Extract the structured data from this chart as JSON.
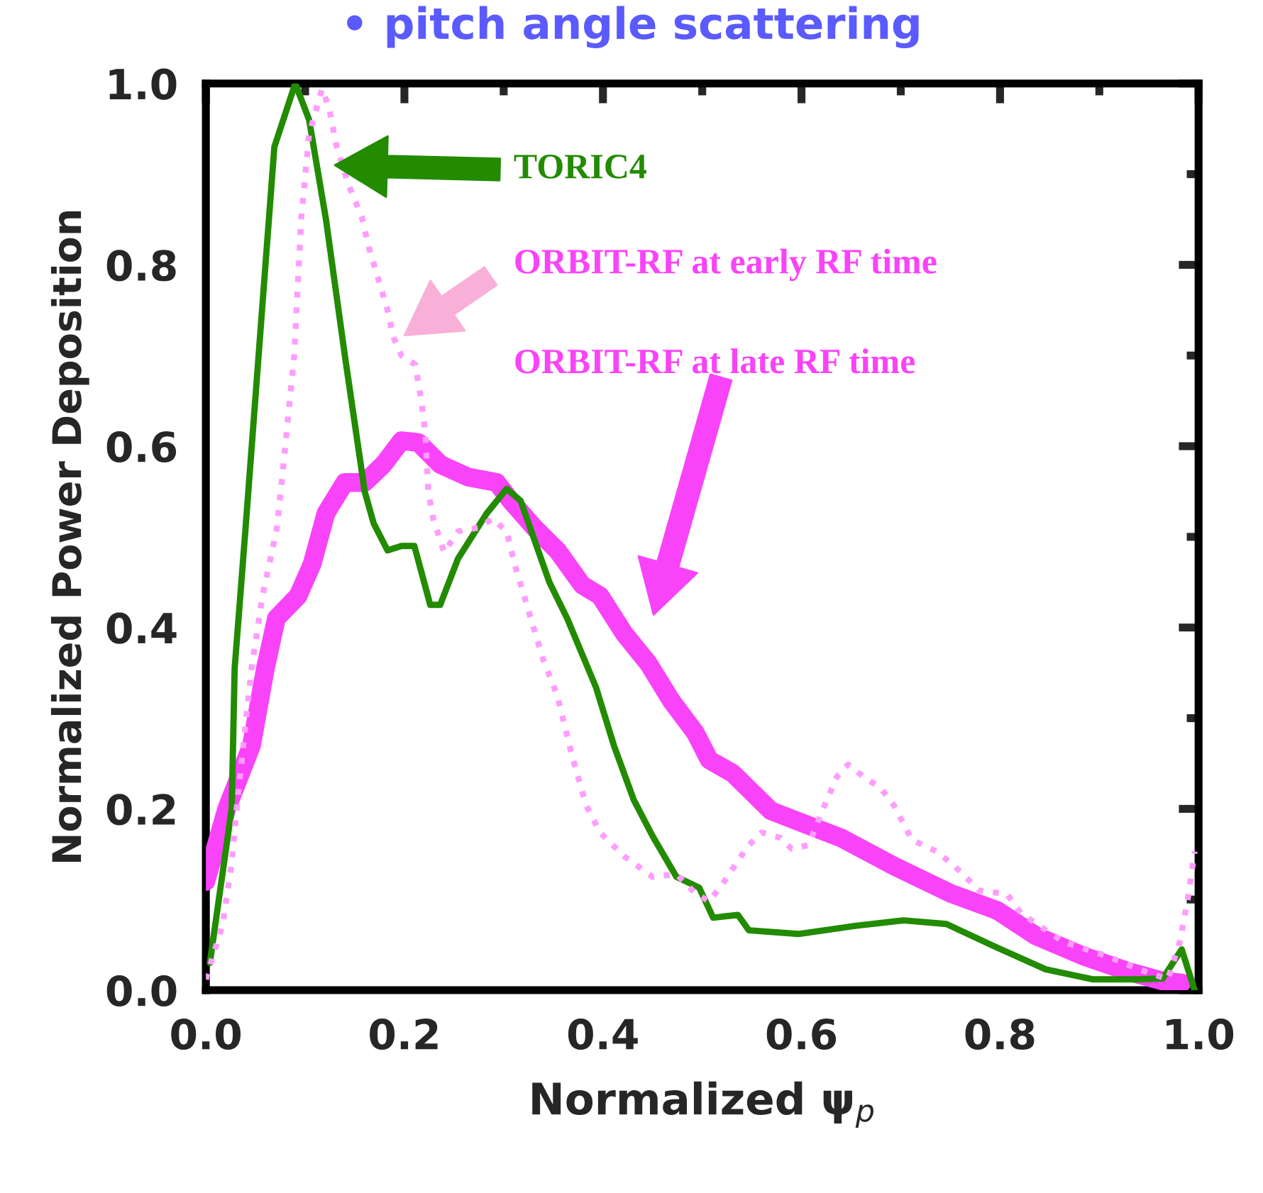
{
  "chart_data": {
    "type": "line",
    "title": "• pitch angle scattering",
    "xlabel": "Normalized ψ$_{p}$",
    "ylabel": "Normalized Power Deposition",
    "xlim": [
      0,
      1
    ],
    "ylim": [
      0,
      1
    ],
    "xticks": [
      {
        "value": 0,
        "label": "0.0"
      },
      {
        "value": 0.1,
        "label": null
      },
      {
        "value": 0.2,
        "label": "0.2"
      },
      {
        "value": 0.3,
        "label": null
      },
      {
        "value": 0.4,
        "label": "0.4"
      },
      {
        "value": 0.5,
        "label": null
      },
      {
        "value": 0.6,
        "label": "0.6"
      },
      {
        "value": 0.7,
        "label": null
      },
      {
        "value": 0.8,
        "label": "0.8"
      },
      {
        "value": 0.9,
        "label": null
      },
      {
        "value": 1,
        "label": "1.0"
      }
    ],
    "yticks": [
      {
        "value": 0,
        "label": "0.0"
      },
      {
        "value": 0.1,
        "label": null
      },
      {
        "value": 0.2,
        "label": "0.2"
      },
      {
        "value": 0.3,
        "label": null
      },
      {
        "value": 0.4,
        "label": "0.4"
      },
      {
        "value": 0.5,
        "label": null
      },
      {
        "value": 0.6,
        "label": "0.6"
      },
      {
        "value": 0.7,
        "label": null
      },
      {
        "value": 0.8,
        "label": "0.8"
      },
      {
        "value": 0.9,
        "label": null
      },
      {
        "value": 1,
        "label": "1.0"
      }
    ],
    "series": [
      {
        "color": "#228b00",
        "line_style": "solid",
        "x": [
          0.004,
          0.026,
          0.029,
          0.04,
          0.069,
          0.09,
          0.104,
          0.121,
          0.14,
          0.16,
          0.169,
          0.183,
          0.197,
          0.21,
          0.226,
          0.236,
          0.254,
          0.283,
          0.303,
          0.317,
          0.346,
          0.364,
          0.393,
          0.411,
          0.431,
          0.45,
          0.474,
          0.497,
          0.511,
          0.536,
          0.547,
          0.597,
          0.654,
          0.703,
          0.746,
          0.797,
          0.846,
          0.893,
          0.94,
          0.964,
          0.983,
          0.996
        ],
        "values": [
          0.03,
          0.2,
          0.355,
          0.51,
          0.93,
          1.0,
          0.96,
          0.85,
          0.7,
          0.55,
          0.515,
          0.485,
          0.49,
          0.49,
          0.425,
          0.425,
          0.476,
          0.526,
          0.553,
          0.54,
          0.45,
          0.41,
          0.334,
          0.27,
          0.21,
          0.17,
          0.125,
          0.113,
          0.08,
          0.083,
          0.066,
          0.062,
          0.071,
          0.077,
          0.073,
          0.047,
          0.023,
          0.012,
          0.012,
          0.013,
          0.045,
          0.0
        ]
      },
      {
        "color": "#ff9cff",
        "line_style": "dotted",
        "x": [
          0.0,
          0.017,
          0.026,
          0.031,
          0.046,
          0.057,
          0.071,
          0.076,
          0.089,
          0.096,
          0.104,
          0.117,
          0.124,
          0.131,
          0.143,
          0.157,
          0.164,
          0.183,
          0.189,
          0.197,
          0.211,
          0.217,
          0.221,
          0.224,
          0.229,
          0.24,
          0.254,
          0.274,
          0.289,
          0.303,
          0.311,
          0.326,
          0.34,
          0.354,
          0.369,
          0.383,
          0.397,
          0.421,
          0.45,
          0.474,
          0.493,
          0.507,
          0.521,
          0.546,
          0.56,
          0.579,
          0.59,
          0.607,
          0.621,
          0.636,
          0.647,
          0.664,
          0.679,
          0.693,
          0.711,
          0.736,
          0.754,
          0.779,
          0.807,
          0.821,
          0.864,
          0.907,
          0.94,
          0.969,
          0.981,
          0.989,
          0.996
        ],
        "values": [
          0.012,
          0.073,
          0.14,
          0.2,
          0.355,
          0.435,
          0.506,
          0.556,
          0.7,
          0.85,
          0.944,
          0.994,
          0.974,
          0.934,
          0.89,
          0.853,
          0.82,
          0.75,
          0.72,
          0.7,
          0.69,
          0.65,
          0.616,
          0.55,
          0.52,
          0.483,
          0.506,
          0.51,
          0.52,
          0.506,
          0.47,
          0.415,
          0.364,
          0.325,
          0.258,
          0.204,
          0.174,
          0.148,
          0.125,
          0.128,
          0.107,
          0.098,
          0.118,
          0.159,
          0.174,
          0.168,
          0.156,
          0.16,
          0.198,
          0.236,
          0.249,
          0.234,
          0.224,
          0.204,
          0.166,
          0.153,
          0.137,
          0.11,
          0.106,
          0.085,
          0.053,
          0.038,
          0.023,
          0.012,
          0.053,
          0.1,
          0.153
        ]
      },
      {
        "color": "#f943f9",
        "line_style": "solid",
        "x": [
          0.0,
          0.021,
          0.046,
          0.06,
          0.071,
          0.093,
          0.107,
          0.121,
          0.14,
          0.16,
          0.179,
          0.197,
          0.214,
          0.236,
          0.264,
          0.293,
          0.307,
          0.331,
          0.354,
          0.379,
          0.397,
          0.421,
          0.446,
          0.469,
          0.493,
          0.507,
          0.531,
          0.569,
          0.597,
          0.64,
          0.693,
          0.75,
          0.797,
          0.836,
          0.883,
          0.931,
          0.964,
          0.983
        ],
        "values": [
          0.12,
          0.2,
          0.27,
          0.355,
          0.41,
          0.435,
          0.47,
          0.526,
          0.56,
          0.56,
          0.58,
          0.606,
          0.604,
          0.58,
          0.566,
          0.56,
          0.54,
          0.51,
          0.485,
          0.447,
          0.435,
          0.394,
          0.36,
          0.319,
          0.284,
          0.254,
          0.239,
          0.198,
          0.186,
          0.168,
          0.137,
          0.107,
          0.088,
          0.06,
          0.038,
          0.02,
          0.01,
          0.008
        ]
      }
    ],
    "annotations": [
      "TORIC4",
      "ORBIT-RF at early RF time",
      "ORBIT-RF at late RF time"
    ]
  }
}
